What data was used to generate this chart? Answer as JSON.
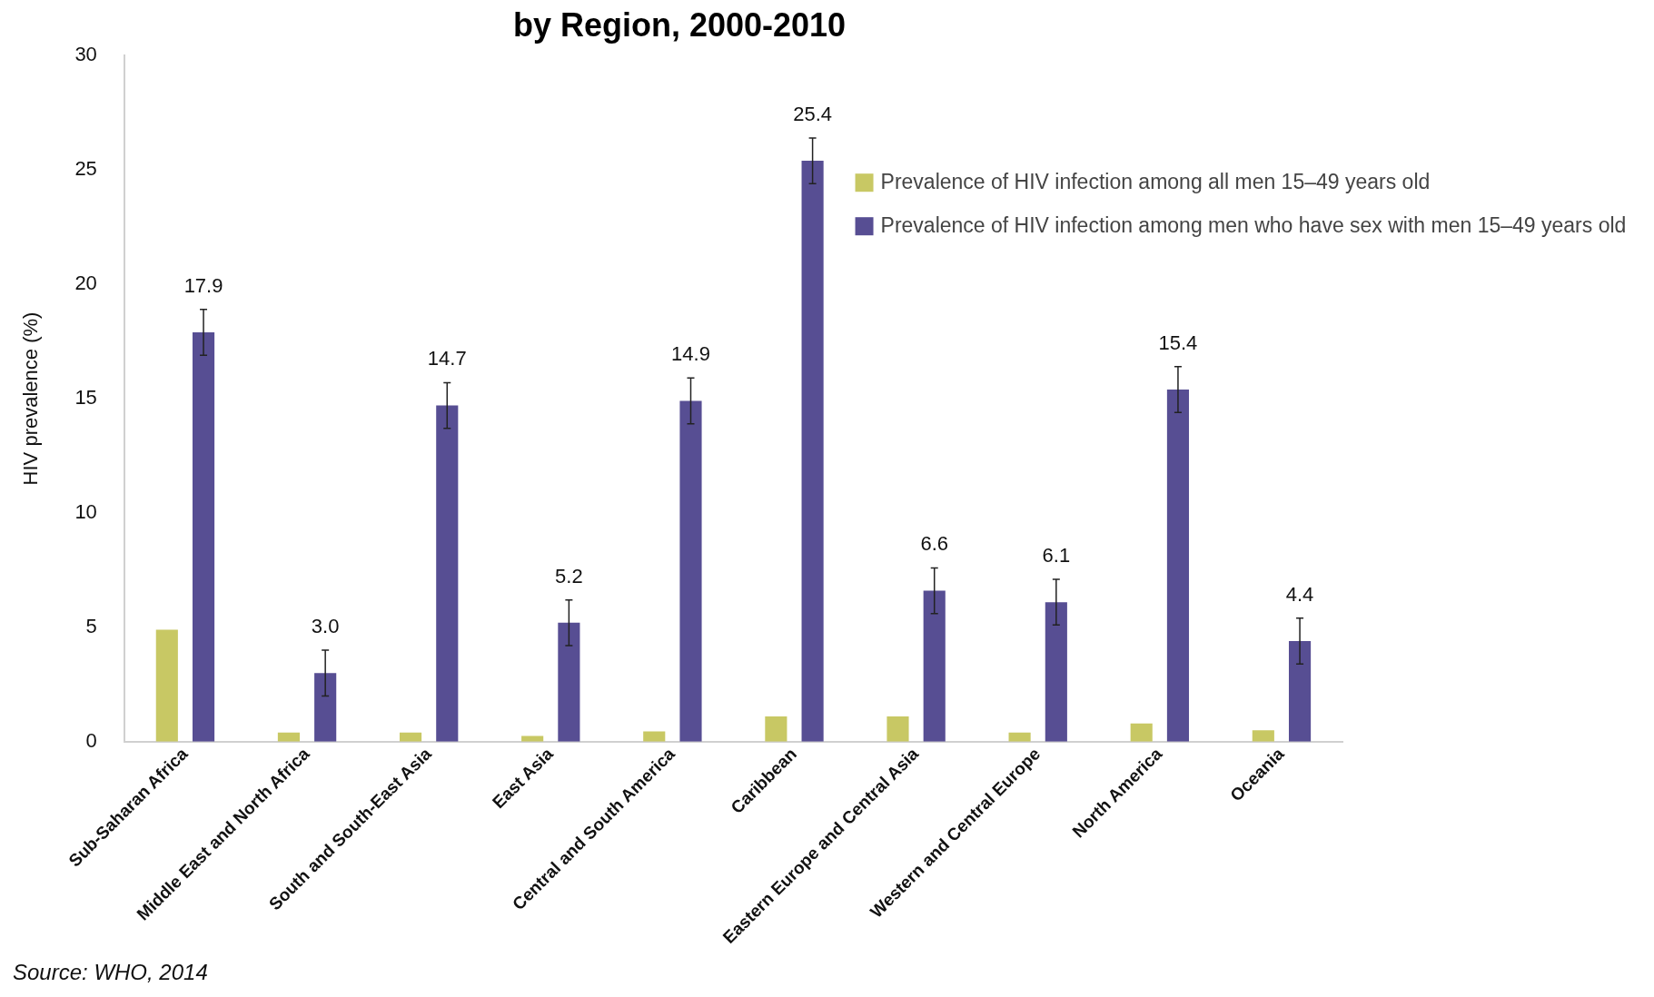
{
  "chart_data": {
    "type": "bar",
    "title": "by Region, 2000-2010",
    "ylabel": "HIV prevalence (%)",
    "categories": [
      "Sub-Saharan Africa",
      "Middle East and North Africa",
      "South and South-East Asia",
      "East Asia",
      "Central and South America",
      "Caribbean",
      "Eastern Europe and Central Asia",
      "Western and Central Europe",
      "North America",
      "Oceania"
    ],
    "series": [
      {
        "name": "Prevalence of HIV infection among all men 15–49 years old",
        "color": "#c8c864",
        "values": [
          4.9,
          0.4,
          0.4,
          0.25,
          0.45,
          1.1,
          1.1,
          0.4,
          0.8,
          0.5
        ]
      },
      {
        "name": "Prevalence of HIV infection among men who have sex with men 15–49 years old",
        "color": "#574e93",
        "values": [
          17.9,
          3.0,
          14.7,
          5.2,
          14.9,
          25.4,
          6.6,
          6.1,
          15.4,
          4.4
        ],
        "errors": [
          1,
          1,
          1,
          1,
          1,
          1,
          1,
          1,
          1,
          1
        ],
        "value_labels": [
          "17.9",
          "3.0",
          "14.7",
          "5.2",
          "14.9",
          "25.4",
          "6.6",
          "6.1",
          "15.4",
          "4.4"
        ]
      }
    ],
    "ylim": [
      0,
      30
    ],
    "yticks": [
      0,
      5,
      10,
      15,
      20,
      25,
      30
    ],
    "grid": false,
    "legend": "top right",
    "annotations": [
      "Source: WHO, 2014"
    ]
  }
}
